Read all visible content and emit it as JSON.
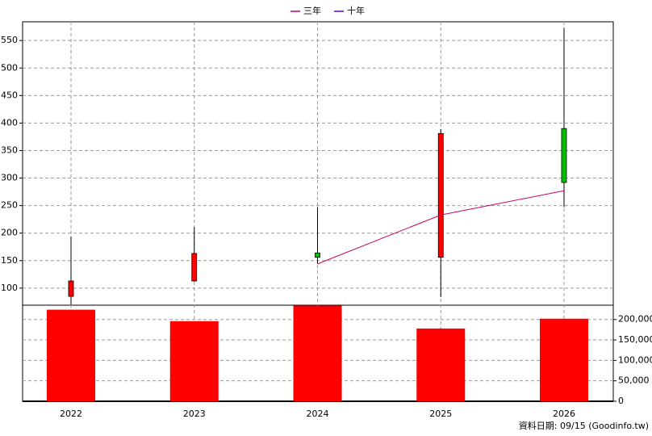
{
  "chart_data": [
    {
      "type": "candlestick",
      "categories": [
        "2022",
        "2023",
        "2024",
        "2025",
        "2026"
      ],
      "open": [
        85,
        113,
        164,
        156,
        390
      ],
      "high": [
        194,
        211,
        247,
        389,
        573
      ],
      "low": [
        70,
        112,
        145,
        84,
        247
      ],
      "close": [
        113,
        163,
        156,
        381,
        292
      ],
      "up_color": "#ff0000",
      "down_color": "#00c000",
      "series": [
        {
          "name": "三年",
          "color": "#cc0066",
          "values": [
            null,
            null,
            144,
            233,
            277
          ]
        },
        {
          "name": "十年",
          "color": "#6600cc",
          "values": [
            null,
            null,
            null,
            null,
            null
          ]
        }
      ],
      "ylim": [
        69,
        584
      ],
      "yticks": [
        100,
        150,
        200,
        250,
        300,
        350,
        400,
        450,
        500,
        550
      ],
      "grid": true
    },
    {
      "type": "bar",
      "values": [
        224000,
        196000,
        234000,
        178000,
        202000
      ],
      "color": "#ff0000",
      "ylim": [
        0,
        235000
      ],
      "yticks": [
        0,
        {
          "value": 50000,
          "label": "50,000"
        },
        {
          "value": 100000,
          "label": "100,000"
        },
        {
          "value": 150000,
          "label": "150,000"
        },
        {
          "value": 200000,
          "label": "200,000"
        }
      ],
      "grid": true
    }
  ],
  "footer": "資料日期: 09/15  (Goodinfo.tw)"
}
